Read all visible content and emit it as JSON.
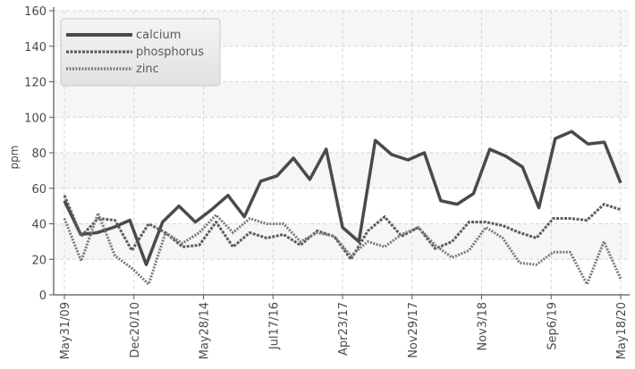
{
  "chart_data": {
    "type": "line",
    "ylabel": "ppm",
    "ylim": [
      0,
      160
    ],
    "yticks": [
      0,
      20,
      40,
      60,
      80,
      100,
      120,
      140,
      160
    ],
    "grid": true,
    "legend_position": "top-left",
    "x_count": 41,
    "x_labels": [
      {
        "i": 0,
        "label": "May31/09"
      },
      {
        "i": 5,
        "label": "Dec20/10"
      },
      {
        "i": 10,
        "label": "May28/14"
      },
      {
        "i": 15,
        "label": "Jul17/16"
      },
      {
        "i": 20,
        "label": "Apr23/17"
      },
      {
        "i": 25,
        "label": "Nov29/17"
      },
      {
        "i": 30,
        "label": "Nov3/18"
      },
      {
        "i": 35,
        "label": "Sep6/19"
      },
      {
        "i": 40,
        "label": "May18/20"
      }
    ],
    "series": [
      {
        "name": "calcium",
        "color": "#4a4a4a",
        "dash": "solid",
        "values": [
          53,
          34,
          35,
          38,
          42,
          17,
          41,
          50,
          41,
          48,
          56,
          44,
          64,
          67,
          77,
          65,
          82,
          38,
          30,
          87,
          79,
          76,
          80,
          53,
          51,
          57,
          82,
          78,
          72,
          49,
          88,
          92,
          85,
          86,
          63
        ]
      },
      {
        "name": "phosphorus",
        "color": "#5c5c5c",
        "dash": "dense",
        "values": [
          56,
          33,
          43,
          42,
          25,
          40,
          35,
          27,
          28,
          41,
          27,
          35,
          32,
          34,
          28,
          36,
          33,
          20,
          36,
          44,
          33,
          38,
          26,
          30,
          41,
          41,
          39,
          35,
          32,
          43,
          43,
          42,
          51,
          48
        ]
      },
      {
        "name": "zinc",
        "color": "#7a7a7a",
        "dash": "dotted",
        "values": [
          43,
          19,
          46,
          22,
          15,
          6,
          35,
          29,
          35,
          45,
          35,
          43,
          40,
          40,
          30,
          35,
          33,
          22,
          30,
          27,
          34,
          38,
          28,
          21,
          25,
          38,
          32,
          18,
          17,
          24,
          24,
          6,
          30,
          9
        ]
      }
    ]
  }
}
